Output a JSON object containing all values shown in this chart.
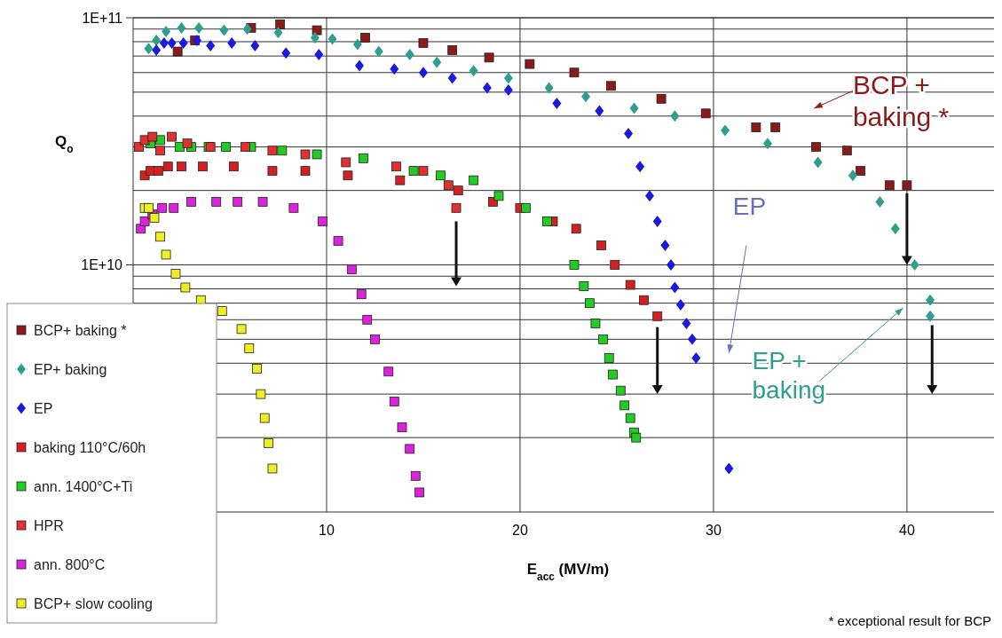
{
  "chart_data": {
    "type": "scatter",
    "xlabel": "E$_{acc}$  (MV/m)",
    "ylabel": "Q$_{o}$",
    "log": "y",
    "grid": true,
    "legend": "bottom left",
    "xlim": [
      0,
      44.5
    ],
    "xticks": [
      10,
      20,
      30,
      40
    ],
    "ylim": [
      1000000000.0,
      100000000000.0
    ],
    "yticks": [
      {
        "value": 2000000000.0,
        "label": null
      },
      {
        "value": 3000000000.0,
        "label": null
      },
      {
        "value": 4000000000.0,
        "label": null
      },
      {
        "value": 5000000000.0,
        "label": null
      },
      {
        "value": 6000000000.0,
        "label": null
      },
      {
        "value": 7000000000.0,
        "label": null
      },
      {
        "value": 8000000000.0,
        "label": null
      },
      {
        "value": 9000000000.0,
        "label": null
      },
      {
        "value": 10000000000.0,
        "label": "1E+10"
      },
      {
        "value": 20000000000.0,
        "label": null
      },
      {
        "value": 30000000000.0,
        "label": null
      },
      {
        "value": 40000000000.0,
        "label": null
      },
      {
        "value": 50000000000.0,
        "label": null
      },
      {
        "value": 60000000000.0,
        "label": null
      },
      {
        "value": 70000000000.0,
        "label": null
      },
      {
        "value": 80000000000.0,
        "label": null
      },
      {
        "value": 90000000000.0,
        "label": null
      },
      {
        "value": 100000000000.0,
        "label": "1E+11"
      }
    ],
    "series": [
      {
        "name": "BCP+ baking *",
        "color": "#8b1a1a",
        "marker": "square",
        "x": [
          2.3,
          3.2,
          6.1,
          7.6,
          9.5,
          12.0,
          15.0,
          16.5,
          18.4,
          20.5,
          22.8,
          24.7,
          27.3,
          29.6,
          32.2,
          33.2,
          35.3,
          36.9,
          37.6,
          39.1,
          40.0
        ],
        "values": [
          73000000000.0,
          81000000000.0,
          91000000000.0,
          94000000000.0,
          89000000000.0,
          83000000000.0,
          79000000000.0,
          74000000000.0,
          69000000000.0,
          65000000000.0,
          60000000000.0,
          53000000000.0,
          47000000000.0,
          41000000000.0,
          36000000000.0,
          36000000000.0,
          30000000000.0,
          29000000000.0,
          24000000000.0,
          21000000000.0,
          21000000000.0
        ]
      },
      {
        "name": "EP+ baking",
        "color": "#2e9e8e",
        "marker": "diamond",
        "x": [
          0.8,
          1.2,
          1.7,
          2.5,
          3.4,
          4.7,
          5.9,
          7.5,
          9.4,
          10.3,
          11.6,
          12.7,
          14.3,
          15.7,
          17.6,
          19.4,
          21.5,
          23.4,
          25.9,
          28.0,
          30.6,
          32.8,
          35.4,
          37.2,
          38.6,
          39.4,
          40.4,
          41.2,
          41.2
        ],
        "values": [
          75000000000.0,
          81000000000.0,
          88000000000.0,
          91000000000.0,
          91000000000.0,
          89000000000.0,
          90000000000.0,
          87000000000.0,
          83000000000.0,
          82000000000.0,
          78000000000.0,
          73000000000.0,
          71000000000.0,
          66000000000.0,
          61000000000.0,
          57000000000.0,
          52000000000.0,
          48000000000.0,
          43000000000.0,
          40000000000.0,
          35000000000.0,
          31000000000.0,
          26000000000.0,
          23000000000.0,
          18000000000.0,
          14000000000.0,
          10000000000.0,
          7200000000.0,
          6200000000.0
        ]
      },
      {
        "name": "EP",
        "color": "#1a1adc",
        "marker": "diamond",
        "x": [
          1.2,
          1.6,
          2.0,
          2.6,
          3.3,
          4.0,
          5.1,
          6.3,
          7.9,
          9.6,
          11.7,
          13.5,
          15.0,
          16.5,
          18.3,
          19.4,
          21.9,
          24.1,
          25.6,
          26.2,
          26.7,
          27.1,
          27.5,
          27.8,
          28.0,
          28.3,
          28.6,
          28.9,
          29.1,
          30.8
        ],
        "values": [
          74000000000.0,
          79000000000.0,
          79000000000.0,
          79000000000.0,
          81000000000.0,
          77000000000.0,
          79000000000.0,
          77000000000.0,
          72000000000.0,
          71000000000.0,
          64000000000.0,
          62000000000.0,
          60000000000.0,
          57000000000.0,
          52000000000.0,
          51000000000.0,
          45000000000.0,
          42000000000.0,
          34000000000.0,
          25000000000.0,
          19000000000.0,
          15000000000.0,
          12000000000.0,
          10000000000.0,
          8100000000.0,
          6900000000.0,
          5800000000.0,
          5000000000.0,
          4200000000.0,
          1500000000.0
        ]
      },
      {
        "name": "baking  110°C/60h",
        "color": "#d42020",
        "marker": "square",
        "x": [
          0.6,
          0.9,
          1.3,
          1.8,
          2.5,
          3.6,
          5.2,
          7.2,
          8.9,
          11.1,
          13.8,
          16.8,
          18.6,
          20.0,
          21.7,
          22.9,
          24.2,
          24.9,
          25.7,
          26.4,
          27.1
        ],
        "values": [
          23000000000.0,
          24000000000.0,
          24000000000.0,
          25000000000.0,
          25000000000.0,
          25000000000.0,
          25000000000.0,
          24000000000.0,
          24000000000.0,
          23000000000.0,
          22000000000.0,
          20000000000.0,
          18000000000.0,
          17000000000.0,
          15000000000.0,
          14000000000.0,
          12000000000.0,
          10000000000.0,
          8300000000.0,
          7200000000.0,
          6200000000.0
        ]
      },
      {
        "name": "ann. 1400°C+Ti",
        "color": "#22cc22",
        "marker": "square",
        "x": [
          0.9,
          1.4,
          2.4,
          3.0,
          3.9,
          4.8,
          6.1,
          7.7,
          9.5,
          11.9,
          14.5,
          15.9,
          17.6,
          18.9,
          20.3,
          21.4,
          22.8,
          23.3,
          23.6,
          23.9,
          24.3,
          24.6,
          24.8,
          25.2,
          25.4,
          25.7,
          25.9,
          26.0
        ],
        "values": [
          31000000000.0,
          32000000000.0,
          30000000000.0,
          30000000000.0,
          30000000000.0,
          30000000000.0,
          30000000000.0,
          29000000000.0,
          28000000000.0,
          27000000000.0,
          24000000000.0,
          23000000000.0,
          22000000000.0,
          19000000000.0,
          17000000000.0,
          15000000000.0,
          10000000000.0,
          8200000000.0,
          7000000000.0,
          5800000000.0,
          5000000000.0,
          4200000000.0,
          3600000000.0,
          3100000000.0,
          2700000000.0,
          2400000000.0,
          2100000000.0,
          2000000000.0
        ]
      },
      {
        "name": "HPR",
        "color": "#e03030",
        "marker": "square",
        "x": [
          0.3,
          0.6,
          1.0,
          1.4,
          2.0,
          2.8,
          4.0,
          5.8,
          7.2,
          8.9,
          11.0,
          13.6,
          15.0,
          16.3,
          16.7
        ],
        "values": [
          30000000000.0,
          32000000000.0,
          33000000000.0,
          29000000000.0,
          33000000000.0,
          31000000000.0,
          30000000000.0,
          30000000000.0,
          29000000000.0,
          28000000000.0,
          26000000000.0,
          25000000000.0,
          24000000000.0,
          21000000000.0,
          17000000000.0
        ]
      },
      {
        "name": "ann.  800°C",
        "color": "#dd22dd",
        "marker": "square",
        "x": [
          0.4,
          0.6,
          1.0,
          1.5,
          2.1,
          3.0,
          4.3,
          5.4,
          6.7,
          8.3,
          9.8,
          10.6,
          11.3,
          11.8,
          12.1,
          12.5,
          13.2,
          13.5,
          13.9,
          14.3,
          14.6,
          14.8
        ],
        "values": [
          14000000000.0,
          15000000000.0,
          16000000000.0,
          17000000000.0,
          17000000000.0,
          18000000000.0,
          18000000000.0,
          18000000000.0,
          18000000000.0,
          17000000000.0,
          15000000000.0,
          12500000000.0,
          9600000000.0,
          7600000000.0,
          6000000000.0,
          5000000000.0,
          3700000000.0,
          2800000000.0,
          2200000000.0,
          1800000000.0,
          1400000000.0,
          1200000000.0
        ]
      },
      {
        "name": "BCP+ slow cooling",
        "color": "#eeee22",
        "marker": "square",
        "x": [
          0.6,
          0.8,
          1.1,
          1.4,
          1.7,
          2.2,
          2.7,
          3.5,
          4.6,
          5.6,
          6.0,
          6.4,
          6.6,
          6.8,
          7.0,
          7.2
        ],
        "values": [
          17000000000.0,
          17000000000.0,
          15500000000.0,
          13000000000.0,
          11000000000.0,
          9200000000.0,
          8100000000.0,
          7200000000.0,
          6500000000.0,
          5500000000.0,
          4600000000.0,
          3800000000.0,
          3000000000.0,
          2400000000.0,
          1900000000.0,
          1500000000.0
        ]
      }
    ],
    "annotations": [
      "BCP + baking *",
      "EP",
      "EP + baking",
      "* exceptional result for BCP"
    ]
  }
}
